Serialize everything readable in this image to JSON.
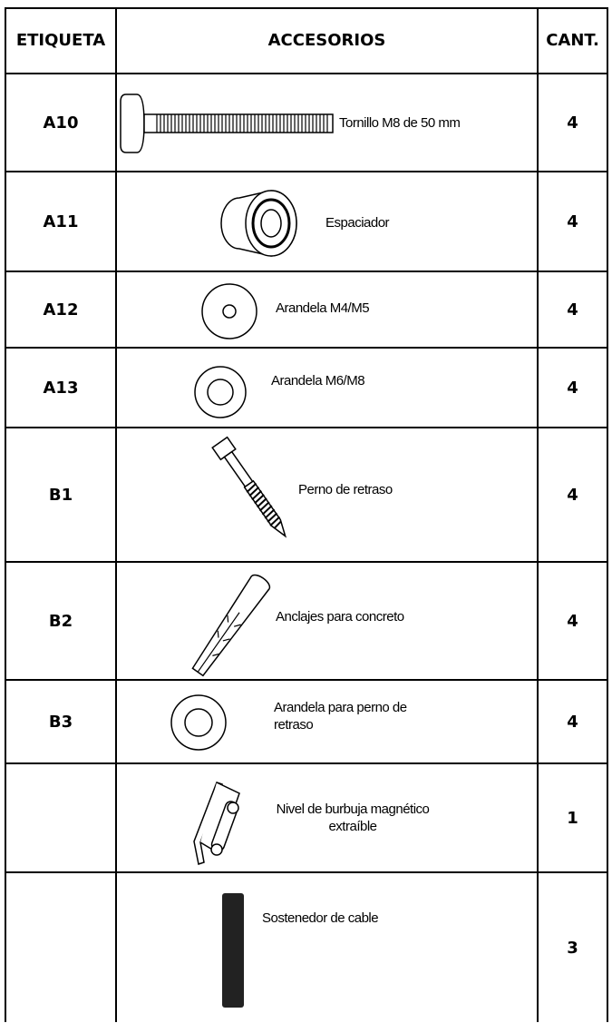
{
  "table": {
    "header": [
      "ETIQUETA",
      "ACCESORIOS",
      "CANT."
    ],
    "rows": [
      {
        "label": "A10",
        "name": "Tornillo M8 de 50 mm",
        "qty": 4
      },
      {
        "label": "A11",
        "name": "Espaciador",
        "qty": 4
      },
      {
        "label": "A12",
        "name": "Arandela M4/M5",
        "qty": 4
      },
      {
        "label": "A13",
        "name": "Arandela M6/M8",
        "qty": 4
      },
      {
        "label": "B1",
        "name": "Perno de retraso",
        "qty": 4
      },
      {
        "label": "B2",
        "name": "Anclajes para concreto",
        "qty": 4
      },
      {
        "label": "B3",
        "name": "Arandela para perno de retraso",
        "qty": 4
      },
      {
        "name": "Nivel de burbuja magnético extraíble",
        "qty": 1
      },
      {
        "name": "Sostenedor de cable",
        "qty": 3
      }
    ]
  }
}
